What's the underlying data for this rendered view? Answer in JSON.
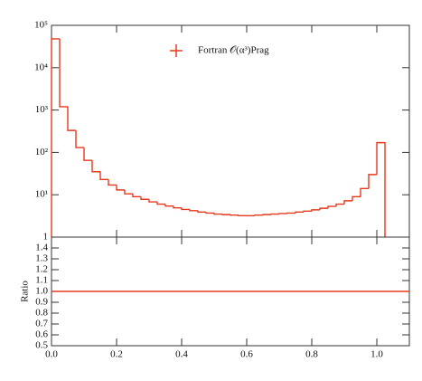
{
  "chart_data": [
    {
      "type": "histogram",
      "log": true,
      "bins": [
        0,
        0.025,
        0.05,
        0.075,
        0.1,
        0.125,
        0.15,
        0.175,
        0.2,
        0.225,
        0.25,
        0.275,
        0.3,
        0.325,
        0.35,
        0.375,
        0.4,
        0.425,
        0.45,
        0.475,
        0.5,
        0.525,
        0.55,
        0.575,
        0.6,
        0.625,
        0.65,
        0.675,
        0.7,
        0.725,
        0.75,
        0.775,
        0.8,
        0.825,
        0.85,
        0.875,
        0.9,
        0.925,
        0.95,
        0.975,
        1.0,
        1.025
      ],
      "series": [
        {
          "name": "Fortran 𝒪(α³)Prag",
          "color": "#e8381c",
          "values": [
            48000,
            1200,
            330,
            130,
            65,
            35,
            23,
            17,
            13,
            10.5,
            9,
            7.8,
            6.8,
            6,
            5.4,
            4.9,
            4.5,
            4.2,
            3.9,
            3.7,
            3.5,
            3.4,
            3.3,
            3.2,
            3.2,
            3.3,
            3.4,
            3.5,
            3.6,
            3.7,
            3.9,
            4.1,
            4.4,
            4.8,
            5.3,
            6,
            7.2,
            9,
            14,
            30,
            170
          ]
        }
      ],
      "xlim": [
        0,
        1.1
      ],
      "xticks": [
        0,
        0.2,
        0.4,
        0.6,
        0.8,
        1
      ],
      "ylim": [
        1,
        100000
      ],
      "yticks": [
        1,
        {
          "value": 10,
          "label": "10¹"
        },
        {
          "value": 100,
          "label": "10²"
        },
        {
          "value": 1000,
          "label": "10³"
        },
        {
          "value": 10000,
          "label": "10⁴"
        },
        {
          "value": 100000,
          "label": "10⁵"
        }
      ],
      "legend": "top"
    },
    {
      "type": "line",
      "ylabel": "Ratio",
      "x": [
        0,
        1.1
      ],
      "series": [
        {
          "color": "#e8381c",
          "values": [
            1,
            1
          ]
        }
      ],
      "xlim": [
        0,
        1.1
      ],
      "xticks": [
        {
          "value": 0,
          "label": "0.0"
        },
        0.2,
        0.4,
        0.6,
        0.8,
        {
          "value": 1,
          "label": "1.0"
        }
      ],
      "ylim": [
        0.5,
        1.5
      ],
      "yticks": [
        0.5,
        0.6,
        0.7,
        0.8,
        0.9,
        {
          "value": 1,
          "label": "1.0"
        },
        1.1,
        1.2,
        1.3,
        1.4
      ]
    }
  ]
}
